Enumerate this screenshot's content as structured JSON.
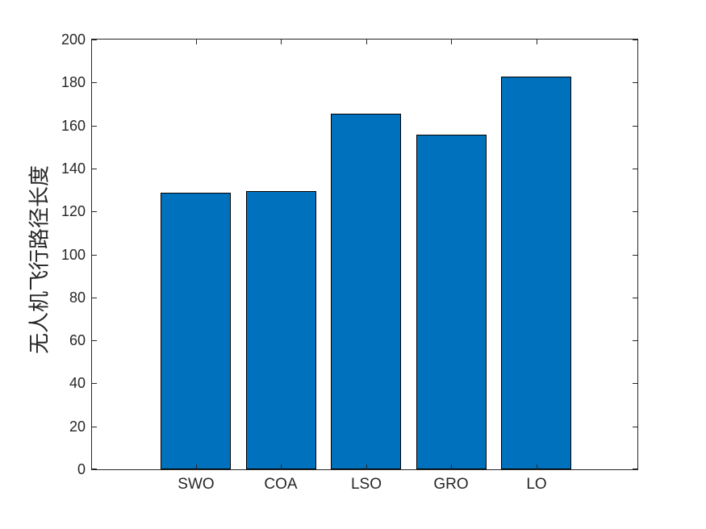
{
  "chart_data": {
    "type": "bar",
    "categories": [
      "SWO",
      "COA",
      "LSO",
      "GRO",
      "LO"
    ],
    "values": [
      128.6,
      129.3,
      165.4,
      155.7,
      182.9
    ],
    "title": "",
    "xlabel": "",
    "ylabel": "无人机飞行路径长度",
    "ylim": [
      0,
      200
    ],
    "ytick_step": 20,
    "ytick_labels": [
      "0",
      "20",
      "40",
      "60",
      "80",
      "100",
      "120",
      "140",
      "160",
      "180",
      "200"
    ],
    "bar_color": "#0072BD",
    "bar_edge_color": "#000000",
    "axis_color": "#262626",
    "grid": false,
    "legend": null
  }
}
